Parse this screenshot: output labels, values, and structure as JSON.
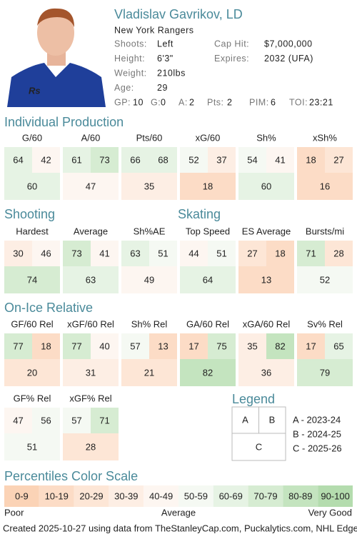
{
  "header": {
    "name": "Vladislav Gavrikov, LD",
    "team": "New York Rangers",
    "info": [
      {
        "label": "Shoots:",
        "value": "Left"
      },
      {
        "label": "Height:",
        "value": "6'3\""
      },
      {
        "label": "Weight:",
        "value": "210lbs"
      },
      {
        "label": "Age:",
        "value": "29"
      }
    ],
    "contract": [
      {
        "label": "Cap Hit:",
        "value": "$7,000,000"
      },
      {
        "label": "Expires:",
        "value": "2032 (UFA)"
      }
    ],
    "stats": [
      {
        "label": "GP:",
        "value": 10
      },
      {
        "label": "G:",
        "value": 0
      },
      {
        "label": "A:",
        "value": 2
      },
      {
        "label": "Pts:",
        "value": 2
      },
      {
        "label": "PIM:",
        "value": 6
      },
      {
        "label": "TOI:",
        "value": "23:21"
      }
    ]
  },
  "sections": [
    {
      "title": "Individual Production",
      "metrics": [
        {
          "label": "G/60",
          "values": [
            64,
            42,
            60
          ]
        },
        {
          "label": "A/60",
          "values": [
            61,
            73,
            47
          ]
        },
        {
          "label": "Pts/60",
          "values": [
            66,
            68,
            35
          ]
        },
        {
          "label": "xG/60",
          "values": [
            52,
            37,
            18
          ]
        },
        {
          "label": "Sh%",
          "values": [
            54,
            41,
            60
          ]
        },
        {
          "label": "xSh%",
          "values": [
            18,
            27,
            16
          ]
        }
      ]
    },
    {
      "title": "Shooting",
      "metrics": [
        {
          "label": "Hardest",
          "values": [
            30,
            46,
            74
          ]
        },
        {
          "label": "Average",
          "values": [
            73,
            41,
            63
          ]
        },
        {
          "label": "Sh%AE",
          "values": [
            63,
            51,
            49
          ]
        }
      ]
    },
    {
      "title": "Skating",
      "metrics": [
        {
          "label": "Top Speed",
          "values": [
            44,
            51,
            64
          ]
        },
        {
          "label": "ES Average",
          "values": [
            27,
            18,
            13
          ]
        },
        {
          "label": "Bursts/mi",
          "values": [
            71,
            28,
            52
          ]
        }
      ]
    },
    {
      "title": "On-Ice Relative",
      "metrics": [
        {
          "label": "GF/60 Rel",
          "values": [
            77,
            18,
            20
          ]
        },
        {
          "label": "xGF/60 Rel",
          "values": [
            77,
            40,
            31
          ]
        },
        {
          "label": "Sh% Rel",
          "values": [
            57,
            13,
            21
          ]
        },
        {
          "label": "GA/60 Rel",
          "values": [
            17,
            75,
            82
          ]
        },
        {
          "label": "xGA/60 Rel",
          "values": [
            35,
            82,
            36
          ]
        },
        {
          "label": "Sv% Rel",
          "values": [
            17,
            65,
            79
          ]
        },
        {
          "label": "GF% Rel",
          "values": [
            47,
            56,
            51
          ]
        },
        {
          "label": "xGF% Rel",
          "values": [
            57,
            71,
            28
          ]
        }
      ]
    }
  ],
  "legend": {
    "title": "Legend",
    "keys": [
      "A",
      "B",
      "C"
    ],
    "seasons": [
      "A - 2023-24",
      "B - 2024-25",
      "C - 2025-26"
    ]
  },
  "color_scale": {
    "title": "Percentiles Color Scale",
    "bins": [
      {
        "label": "0-9",
        "color": "#fbd3b6"
      },
      {
        "label": "10-19",
        "color": "#fcdcc6"
      },
      {
        "label": "20-29",
        "color": "#fde6d6"
      },
      {
        "label": "30-39",
        "color": "#fdeee4"
      },
      {
        "label": "40-49",
        "color": "#fdf6f1"
      },
      {
        "label": "50-59",
        "color": "#f5f9f3"
      },
      {
        "label": "60-69",
        "color": "#e6f3e4"
      },
      {
        "label": "70-79",
        "color": "#d6ecd2"
      },
      {
        "label": "80-89",
        "color": "#c4e4bf"
      },
      {
        "label": "90-100",
        "color": "#b4dcae"
      }
    ],
    "low": "Poor",
    "mid": "Average",
    "high": "Very Good"
  },
  "footer": "Created 2025-10-27 using data from TheStanleyCap.com, Puckalytics.com, NHL Edge (nhl.com/nhl-edge)."
}
